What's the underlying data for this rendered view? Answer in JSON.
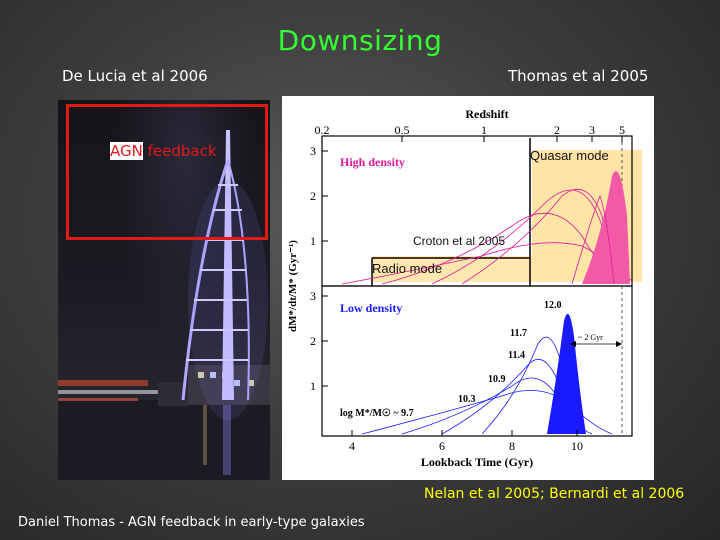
{
  "slide": {
    "title": "Downsizing",
    "left_citation": "De Lucia et al 2006",
    "right_citation": "Thomas et al 2005",
    "agn_label_part1": "AGN",
    "agn_label_part2": " feedback",
    "quasar_label": "Quasar mode",
    "croton_label": "Croton et al 2005",
    "radio_label": "Radio mode",
    "bottom_citation": "Nelan et al 2005; Bernardi et al 2006",
    "footer": "Daniel Thomas - AGN feedback in early-type galaxies"
  },
  "plot": {
    "top_axis_label": "Redshift",
    "top_ticks": [
      "0.2",
      "0.5",
      "1",
      "2",
      "3",
      "5"
    ],
    "upper_panel_label": "High density",
    "lower_panel_label": "Low density",
    "y_ticks_upper": [
      "3",
      "2",
      "1"
    ],
    "y_ticks_lower": [
      "3",
      "2",
      "1"
    ],
    "y_axis_label": "dM*/dt/M*  (Gyr⁻¹)",
    "x_ticks": [
      "4",
      "6",
      "8",
      "10"
    ],
    "x_axis_label": "Lookback Time (Gyr)",
    "mass_labels": [
      "12.0",
      "11.7",
      "11.4",
      "10.9",
      "10.3"
    ],
    "mass_prefix": "log M*/M☉ ~ 9.7",
    "arrow_label": "~ 2 Gyr"
  },
  "colors": {
    "title": "#33ff33",
    "highlight_box": "#ffe4a6",
    "red_frame": "#e51818",
    "high_density_text": "#e0199b",
    "low_density_text": "#1a1aff",
    "bottom_citation": "#ffff00"
  }
}
